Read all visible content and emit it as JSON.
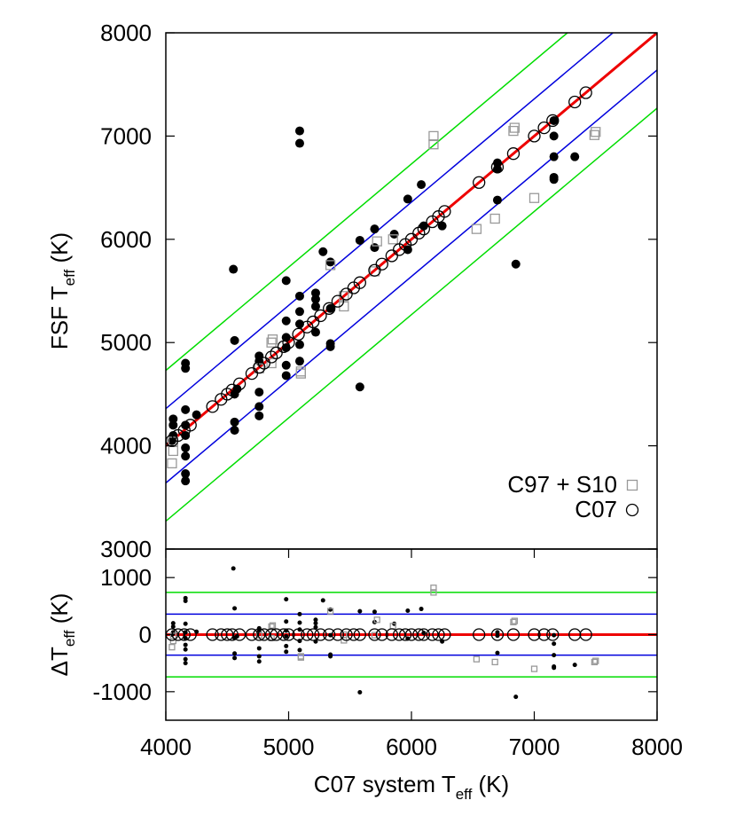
{
  "chart_data": [
    {
      "type": "scatter",
      "ylabel": [
        "FSF T",
        "eff",
        " (K)"
      ],
      "xlim": [
        4000,
        8000
      ],
      "ylim": [
        3000,
        8000
      ],
      "yticks": [
        3000,
        4000,
        5000,
        6000,
        7000,
        8000
      ],
      "legend": "bottom-right",
      "series": [
        {
          "marker": "dot",
          "color": "#000000",
          "x": [
            4050,
            4060,
            4060,
            4060,
            4160,
            4160,
            4160,
            4160,
            4160,
            4160,
            4160,
            4160,
            4160,
            4250,
            4550,
            4560,
            4560,
            4560,
            4560,
            4580,
            4760,
            4760,
            4760,
            4760,
            4760,
            4980,
            4980,
            4980,
            4980,
            4980,
            4980,
            5090,
            5090,
            5090,
            5090,
            5090,
            5090,
            5090,
            5220,
            5220,
            5220,
            5220,
            5280,
            5340,
            5340,
            5340,
            5340,
            5580,
            5580,
            5700,
            5700,
            5860,
            5970,
            5970,
            6080,
            6100,
            6250,
            6700,
            6700,
            6700,
            6850,
            7160,
            7160,
            7160,
            7160,
            7160,
            7330
          ],
          "values": [
            4050,
            4200,
            4260,
            4100,
            4800,
            4750,
            4350,
            4200,
            4100,
            3980,
            3900,
            3730,
            3660,
            4300,
            5710,
            5020,
            4500,
            4230,
            4150,
            4550,
            4870,
            4520,
            4380,
            4290,
            4820,
            5600,
            5210,
            5050,
            4950,
            4780,
            4680,
            7050,
            6930,
            5450,
            5300,
            5180,
            4980,
            4820,
            5480,
            5420,
            5350,
            5100,
            5880,
            5780,
            5330,
            4990,
            4960,
            5990,
            4570,
            6100,
            5920,
            6050,
            6390,
            5900,
            6530,
            6130,
            6130,
            6740,
            6680,
            6380,
            5760,
            7150,
            6800,
            6600,
            6580,
            7000,
            6800
          ]
        },
        {
          "name": "C97 + S10",
          "marker": "square",
          "color": "#999999",
          "x": [
            4050,
            4060,
            4060,
            4760,
            4860,
            4860,
            4870,
            5100,
            5100,
            5340,
            5450,
            5450,
            5700,
            5720,
            5850,
            6180,
            6180,
            6530,
            6680,
            6830,
            6840,
            7000,
            7490,
            7500
          ],
          "values": [
            3830,
            3950,
            4040,
            4750,
            4800,
            5000,
            5030,
            4700,
            4720,
            5750,
            5350,
            5450,
            5690,
            5980,
            6000,
            6920,
            7000,
            6100,
            6200,
            7050,
            7080,
            6400,
            7010,
            7040
          ]
        },
        {
          "name": "C07",
          "marker": "circle",
          "color": "#000000",
          "x": [
            4050,
            4100,
            4150,
            4200,
            4380,
            4450,
            4500,
            4540,
            4600,
            4700,
            4760,
            4800,
            4860,
            4900,
            4960,
            5000,
            5080,
            5150,
            5200,
            5260,
            5330,
            5400,
            5470,
            5530,
            5580,
            5700,
            5760,
            5840,
            5900,
            5950,
            6000,
            6060,
            6100,
            6170,
            6220,
            6270,
            6550,
            6700,
            6830,
            7000,
            7080,
            7150,
            7330,
            7420
          ],
          "values": [
            4050,
            4100,
            4150,
            4200,
            4380,
            4450,
            4500,
            4540,
            4600,
            4700,
            4760,
            4800,
            4860,
            4900,
            4960,
            5000,
            5080,
            5150,
            5200,
            5260,
            5330,
            5400,
            5470,
            5530,
            5580,
            5700,
            5760,
            5840,
            5900,
            5950,
            6000,
            6060,
            6100,
            6170,
            6220,
            6270,
            6550,
            6700,
            6830,
            7000,
            7080,
            7150,
            7330,
            7420
          ]
        }
      ],
      "lines": [
        {
          "color": "#00dd00",
          "x": [
            4000,
            7270
          ],
          "values": [
            4730,
            8000
          ]
        },
        {
          "color": "#0000dd",
          "x": [
            4000,
            7640
          ],
          "values": [
            4360,
            8000
          ]
        },
        {
          "color": "#0000dd",
          "x": [
            4000,
            8000
          ],
          "values": [
            3640,
            7640
          ]
        },
        {
          "color": "#00dd00",
          "x": [
            4000,
            8000
          ],
          "values": [
            3270,
            7270
          ]
        },
        {
          "color": "#ee0000",
          "x": [
            4000,
            8000
          ],
          "values": [
            4000,
            8000
          ]
        }
      ]
    },
    {
      "type": "scatter",
      "ylabel": [
        "ΔT",
        "eff",
        " (K)"
      ],
      "xlabel": [
        "C07 system T",
        "eff",
        " (K)"
      ],
      "xlim": [
        4000,
        8000
      ],
      "ylim": [
        -1500,
        1500
      ],
      "xticks": [
        4000,
        5000,
        6000,
        7000,
        8000
      ],
      "yticks": [
        -1000,
        0,
        1000
      ],
      "series": [
        {
          "marker": "dot",
          "color": "#000000",
          "x": [
            4050,
            4060,
            4060,
            4060,
            4160,
            4160,
            4160,
            4160,
            4160,
            4160,
            4160,
            4160,
            4160,
            4250,
            4550,
            4560,
            4560,
            4560,
            4560,
            4580,
            4760,
            4760,
            4760,
            4760,
            4760,
            4980,
            4980,
            4980,
            4980,
            4980,
            4980,
            5090,
            5090,
            5090,
            5090,
            5090,
            5220,
            5220,
            5220,
            5220,
            5280,
            5340,
            5340,
            5340,
            5340,
            5580,
            5580,
            5700,
            5700,
            5860,
            5970,
            5970,
            6080,
            6100,
            6250,
            6700,
            6700,
            6700,
            6850,
            7160,
            7160,
            7160,
            7160,
            7160,
            7330
          ],
          "values": [
            0,
            140,
            200,
            40,
            640,
            590,
            190,
            40,
            -60,
            -180,
            -260,
            -430,
            -500,
            50,
            1160,
            460,
            -60,
            -330,
            -410,
            -30,
            110,
            -240,
            -380,
            -470,
            60,
            620,
            230,
            70,
            -30,
            -200,
            -300,
            360,
            210,
            90,
            -110,
            -270,
            260,
            200,
            130,
            -120,
            600,
            440,
            -10,
            -350,
            -380,
            410,
            -1010,
            400,
            220,
            190,
            420,
            -70,
            450,
            30,
            -120,
            40,
            -20,
            -320,
            -1090,
            -10,
            -360,
            -560,
            -580,
            -160,
            -530
          ]
        },
        {
          "marker": "square",
          "color": "#999999",
          "x": [
            4050,
            4060,
            4060,
            4760,
            4860,
            4860,
            4870,
            5100,
            5100,
            5340,
            5450,
            5450,
            5700,
            5720,
            5850,
            6180,
            6180,
            6530,
            6680,
            6830,
            6840,
            7000,
            7490,
            7500
          ],
          "values": [
            -220,
            -110,
            -20,
            -10,
            -60,
            140,
            160,
            -400,
            -380,
            410,
            -100,
            0,
            -10,
            260,
            150,
            740,
            820,
            -430,
            -480,
            220,
            240,
            -600,
            -480,
            -460
          ]
        },
        {
          "marker": "circle",
          "color": "#000000",
          "x": [
            4050,
            4100,
            4150,
            4200,
            4380,
            4450,
            4500,
            4540,
            4600,
            4700,
            4760,
            4800,
            4860,
            4900,
            4960,
            5000,
            5080,
            5150,
            5200,
            5260,
            5330,
            5400,
            5470,
            5530,
            5580,
            5700,
            5760,
            5840,
            5900,
            5950,
            6000,
            6060,
            6100,
            6170,
            6220,
            6270,
            6550,
            6700,
            6830,
            7000,
            7080,
            7150,
            7330,
            7420
          ],
          "values": [
            0,
            0,
            0,
            0,
            0,
            0,
            0,
            0,
            0,
            0,
            0,
            0,
            0,
            0,
            0,
            0,
            0,
            0,
            0,
            0,
            0,
            0,
            0,
            0,
            0,
            0,
            0,
            0,
            0,
            0,
            0,
            0,
            0,
            0,
            0,
            0,
            0,
            0,
            0,
            0,
            0,
            0,
            0,
            0
          ]
        }
      ],
      "lines": [
        {
          "color": "#00dd00",
          "x": [
            4000,
            8000
          ],
          "values": [
            740,
            740
          ]
        },
        {
          "color": "#0000dd",
          "x": [
            4000,
            8000
          ],
          "values": [
            360,
            360
          ]
        },
        {
          "color": "#0000dd",
          "x": [
            4000,
            8000
          ],
          "values": [
            -360,
            -360
          ]
        },
        {
          "color": "#00dd00",
          "x": [
            4000,
            8000
          ],
          "values": [
            -740,
            -740
          ]
        },
        {
          "color": "#ee0000",
          "x": [
            4000,
            8000
          ],
          "values": [
            0,
            0
          ]
        }
      ]
    }
  ]
}
